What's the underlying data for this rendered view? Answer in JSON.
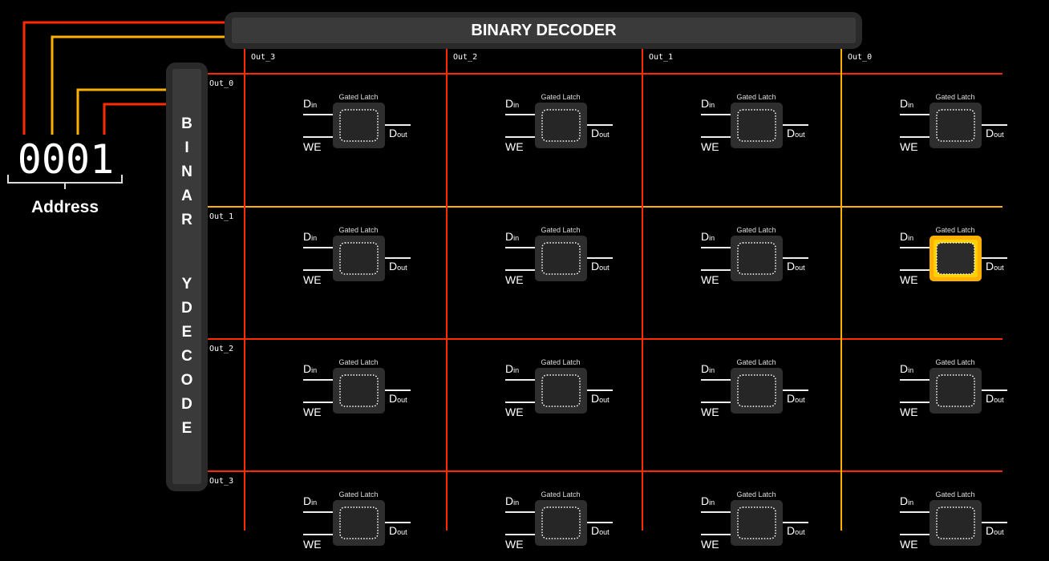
{
  "top_decoder": {
    "label": "BINARY DECODER"
  },
  "side_decoder": {
    "label": "BINARY DECODER"
  },
  "address": {
    "value": "0001",
    "label": "Address",
    "bit_colors": [
      "#ff2a00",
      "#ffb000",
      "#ffb000",
      "#ff2a00"
    ]
  },
  "columns": [
    "Out_3",
    "Out_2",
    "Out_1",
    "Out_0"
  ],
  "rows": [
    "Out_0",
    "Out_1",
    "Out_2",
    "Out_3"
  ],
  "active_column": "Out_0",
  "active_row": "Out_1",
  "latch": {
    "title": "Gated Latch",
    "din": "Din",
    "we": "WE",
    "dout": "Dout"
  },
  "colors": {
    "line": "#ff2a00",
    "active": "#ffb000",
    "box": "#2e2e2e",
    "decoder": "#3a3a3a"
  }
}
